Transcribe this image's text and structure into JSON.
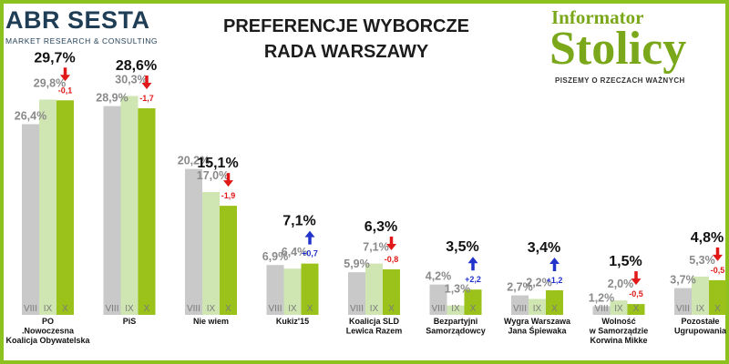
{
  "header": {
    "brand_left": "ABR SESTA",
    "brand_left_tagline": "MARKET RESEARCH & CONSULTING",
    "title_line1": "PREFERENCJE WYBORCZE",
    "title_line2": "RADA WARSZAWY",
    "brand_right_top": "Informator",
    "brand_right_main": "Stolicy",
    "brand_right_tagline": "PISZEMY O RZECZACH WAŻNYCH"
  },
  "colors": {
    "frame": "#8cc21f",
    "bar_viii": "#c9c9c9",
    "bar_ix": "#cfe6b2",
    "bar_x": "#9ac21a",
    "value_muted": "#8a8a8a",
    "value_main": "#111111",
    "arrow_down": "#e01818",
    "arrow_up": "#2233cc"
  },
  "chart_data": {
    "type": "bar",
    "title": "PREFERENCJE WYBORCZE RADA WARSZAWY",
    "categories": [
      [
        "PO",
        ".Nowoczesna",
        "Koalicja Obywatelska"
      ],
      [
        "PiS"
      ],
      [
        "Nie wiem"
      ],
      [
        "Kukiz'15"
      ],
      [
        "Koalicja SLD",
        "Lewica Razem"
      ],
      [
        "Bezpartyjni",
        "Samorządowcy"
      ],
      [
        "Wygra Warszawa",
        "Jana Śpiewaka"
      ],
      [
        "Wolność",
        "w Samorządzie",
        "Korwina Mikke"
      ],
      [
        "Pozostałe",
        "Ugrupowania"
      ]
    ],
    "bar_labels": [
      "VIII",
      "IX",
      "X"
    ],
    "series": [
      {
        "name": "VIII",
        "values": [
          26.4,
          28.9,
          20.2,
          6.9,
          5.9,
          4.2,
          2.7,
          1.2,
          3.7
        ],
        "labels": [
          "26,4%",
          "28,9%",
          "20,2%",
          "6,9%",
          "5,9%",
          "4,2%",
          "2,7%",
          "1,2%",
          "3,7%"
        ]
      },
      {
        "name": "IX",
        "values": [
          29.8,
          30.3,
          17.0,
          6.4,
          7.1,
          1.3,
          2.2,
          2.0,
          5.3
        ],
        "labels": [
          "29,8%",
          "30,3%",
          "17,0%",
          "6,4%",
          "7,1%",
          "1,3%",
          "2,2%",
          "2,0%",
          "5,3%"
        ]
      },
      {
        "name": "X",
        "values": [
          29.7,
          28.6,
          15.1,
          7.1,
          6.3,
          3.5,
          3.4,
          1.5,
          4.8
        ],
        "labels": [
          "29,7%",
          "28,6%",
          "15,1%",
          "7,1%",
          "6,3%",
          "3,5%",
          "3,4%",
          "1,5%",
          "4,8%"
        ]
      }
    ],
    "changes": [
      {
        "label": "-0,1",
        "direction": "down"
      },
      {
        "label": "-1,7",
        "direction": "down"
      },
      {
        "label": "-1,9",
        "direction": "down"
      },
      {
        "label": "+0,7",
        "direction": "up"
      },
      {
        "label": "-0,8",
        "direction": "down"
      },
      {
        "label": "+2,2",
        "direction": "up"
      },
      {
        "label": "+1,2",
        "direction": "up"
      },
      {
        "label": "-0,5",
        "direction": "down"
      },
      {
        "label": "-0,5",
        "direction": "down"
      }
    ],
    "ylim": [
      0,
      32
    ],
    "grid": false,
    "legend": "none"
  }
}
